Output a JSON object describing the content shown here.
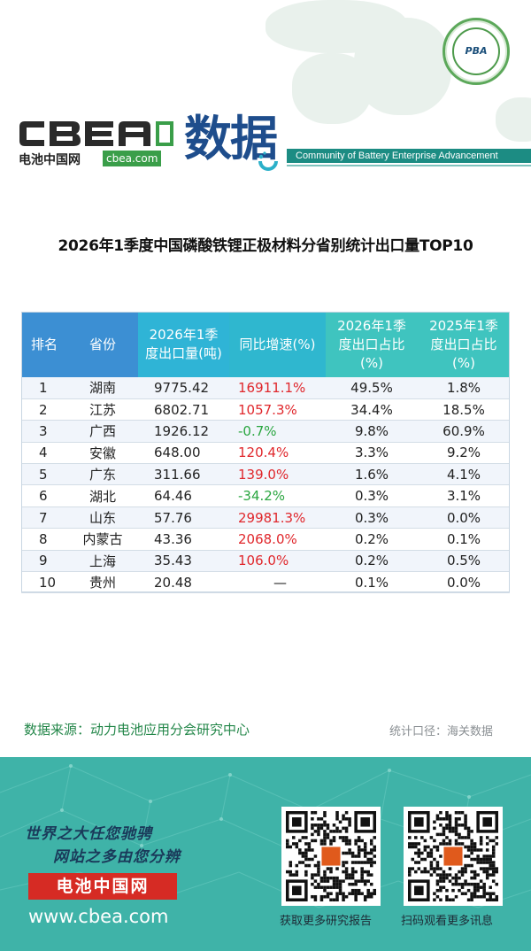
{
  "header": {
    "cbea_logo_text": "CBEA",
    "logo_cn": "电池中国网",
    "logo_domain": "cbea.com",
    "section_title": "数据",
    "community_text": "Community of Battery Enterprise Advancement",
    "seal_text": "PBA"
  },
  "page_title": "2026年1季度中国磷酸铁锂正极材料分省别统计出口量TOP10",
  "table": {
    "headers": {
      "rank": "排名",
      "province": "省份",
      "volume_l1": "2026年1季",
      "volume_l2": "度出口量(吨)",
      "yoy": "同比增速(%)",
      "share26_l1": "2026年1季",
      "share26_l2": "度出口占比",
      "share26_l3": "(%)",
      "share25_l1": "2025年1季",
      "share25_l2": "度出口占比",
      "share25_l3": "(%)"
    },
    "rows": [
      {
        "rank": "1",
        "province": "湖南",
        "volume": "9775.42",
        "yoy": "16911.1%",
        "yoy_sign": "pos",
        "share_2026": "49.5%",
        "share_2025": "1.8%"
      },
      {
        "rank": "2",
        "province": "江苏",
        "volume": "6802.71",
        "yoy": "1057.3%",
        "yoy_sign": "pos",
        "share_2026": "34.4%",
        "share_2025": "18.5%"
      },
      {
        "rank": "3",
        "province": "广西",
        "volume": "1926.12",
        "yoy": "-0.7%",
        "yoy_sign": "neg",
        "share_2026": "9.8%",
        "share_2025": "60.9%"
      },
      {
        "rank": "4",
        "province": "安徽",
        "volume": "648.00",
        "yoy": "120.4%",
        "yoy_sign": "pos",
        "share_2026": "3.3%",
        "share_2025": "9.2%"
      },
      {
        "rank": "5",
        "province": "广东",
        "volume": "311.66",
        "yoy": "139.0%",
        "yoy_sign": "pos",
        "share_2026": "1.6%",
        "share_2025": "4.1%"
      },
      {
        "rank": "6",
        "province": "湖北",
        "volume": "64.46",
        "yoy": "-34.2%",
        "yoy_sign": "neg",
        "share_2026": "0.3%",
        "share_2025": "3.1%"
      },
      {
        "rank": "7",
        "province": "山东",
        "volume": "57.76",
        "yoy": "29981.3%",
        "yoy_sign": "pos",
        "share_2026": "0.3%",
        "share_2025": "0.0%"
      },
      {
        "rank": "8",
        "province": "内蒙古",
        "volume": "43.36",
        "yoy": "2068.0%",
        "yoy_sign": "pos",
        "share_2026": "0.2%",
        "share_2025": "0.1%"
      },
      {
        "rank": "9",
        "province": "上海",
        "volume": "35.43",
        "yoy": "106.0%",
        "yoy_sign": "pos",
        "share_2026": "0.2%",
        "share_2025": "0.5%"
      },
      {
        "rank": "10",
        "province": "贵州",
        "volume": "20.48",
        "yoy": "—",
        "yoy_sign": "nil",
        "share_2026": "0.1%",
        "share_2025": "0.0%"
      }
    ]
  },
  "source": {
    "data_source": "数据来源：动力电池应用分会研究中心",
    "stat_basis": "统计口径：海关数据"
  },
  "footer": {
    "slogan_line1": "世界之大任您驰骋",
    "slogan_line2": "网站之多由您分辨",
    "brand_name": "电池中国网",
    "brand_url": "www.cbea.com",
    "qr1_caption": "获取更多研究报告",
    "qr2_caption": "扫码观看更多讯息"
  },
  "colors": {
    "header_blue": "#3c8fd3",
    "header_teal": "#3fc4bf",
    "positive": "#e0272c",
    "negative": "#2aa640",
    "footer_bg": "#3fb3a8",
    "brand_red": "#d62b24"
  }
}
